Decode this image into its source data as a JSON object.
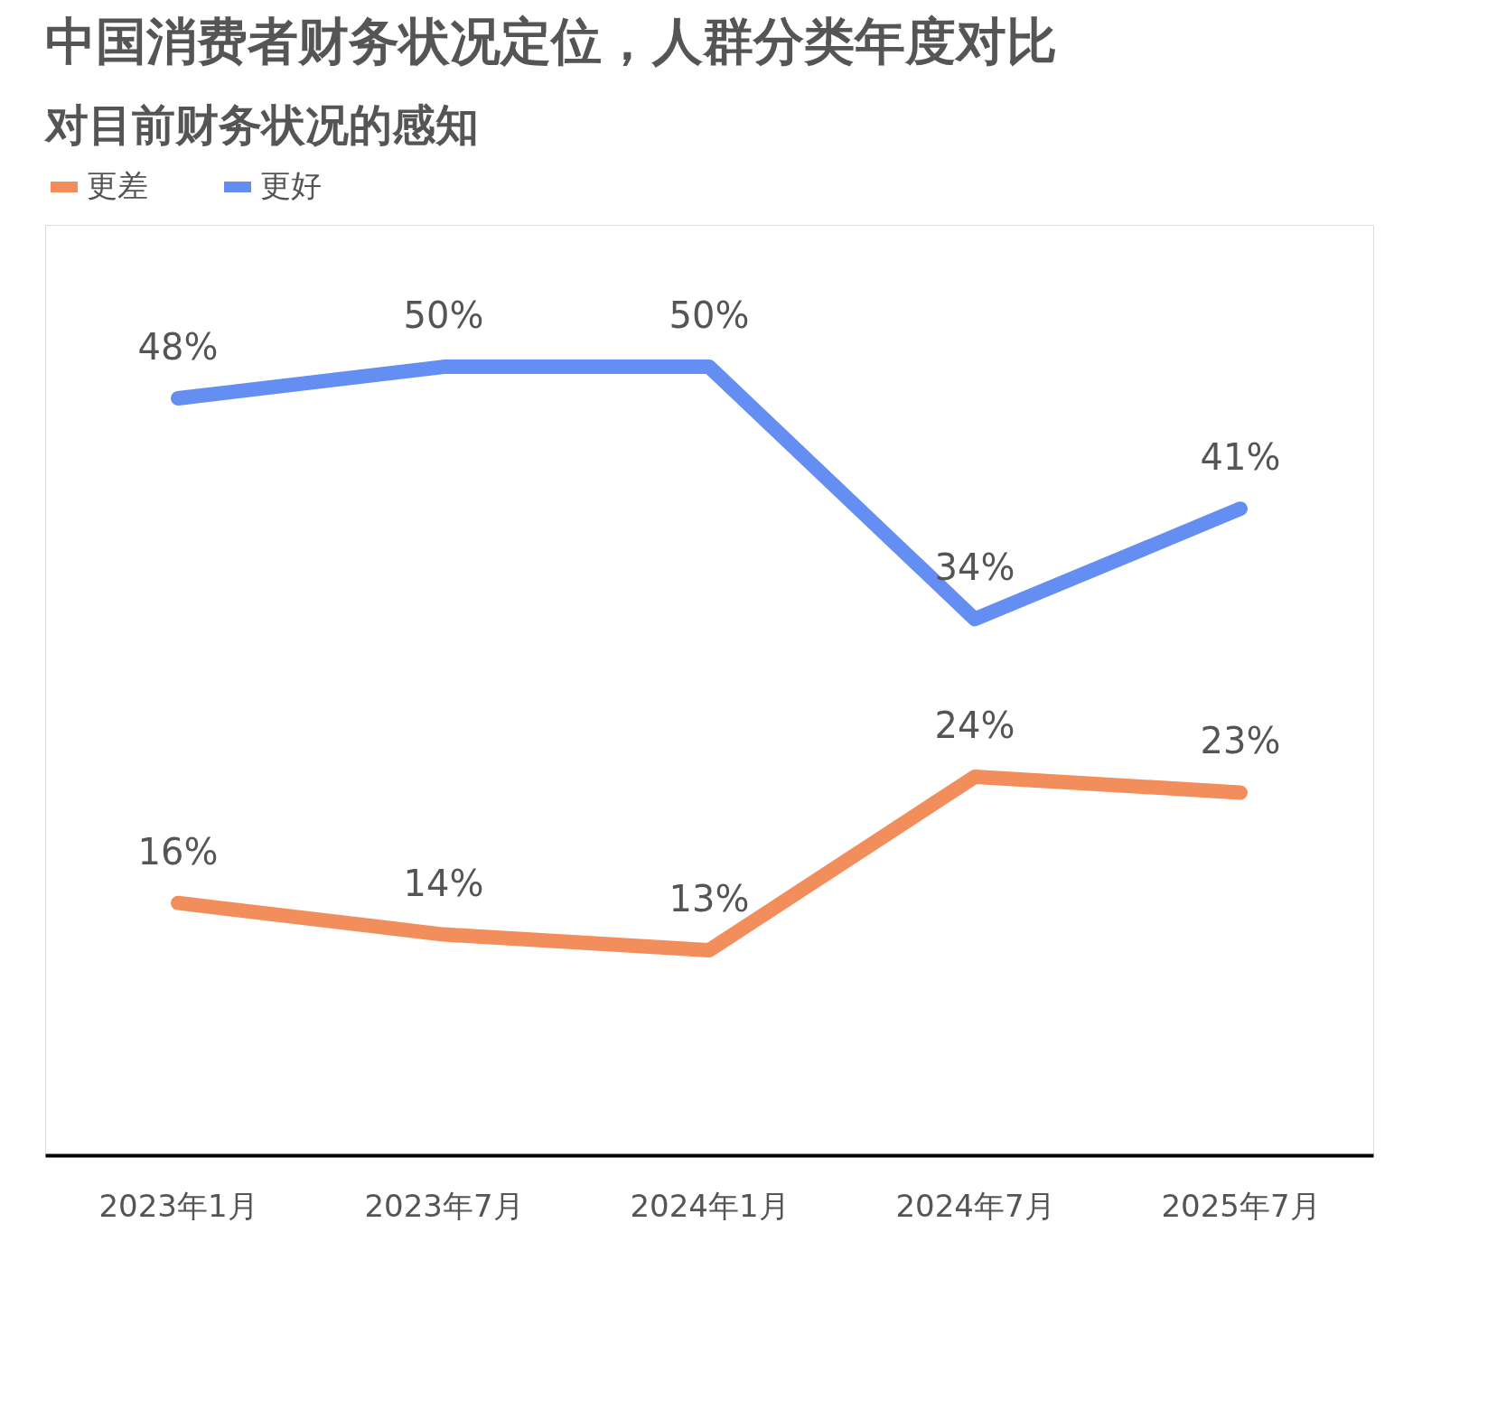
{
  "chart_data": {
    "type": "line",
    "title": "中国消费者财务状况定位，人群分类年度对比",
    "subtitle": "对目前财务状况的感知",
    "categories": [
      "2023年1月",
      "2023年7月",
      "2024年1月",
      "2024年7月",
      "2025年7月"
    ],
    "series": [
      {
        "name": "更差",
        "color": "#f07a3f",
        "values": [
          16,
          14,
          13,
          24,
          23
        ],
        "value_labels": [
          "16%",
          "14%",
          "13%",
          "24%",
          "23%"
        ]
      },
      {
        "name": "更好",
        "color": "#4a7af0",
        "values": [
          48,
          50,
          50,
          34,
          41
        ],
        "value_labels": [
          "48%",
          "50%",
          "50%",
          "34%",
          "41%"
        ]
      }
    ],
    "legend": "top",
    "grid": false,
    "tick_labels": "x",
    "marker": "none"
  }
}
